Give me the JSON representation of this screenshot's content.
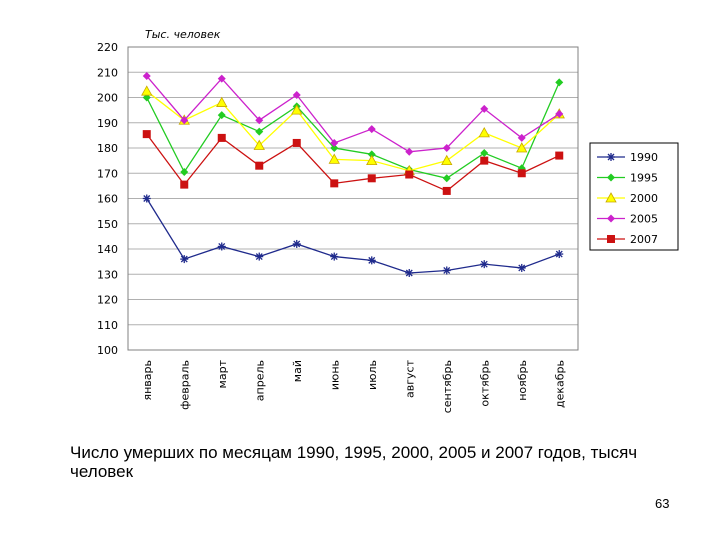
{
  "slide": {
    "caption": "Число умерших по месяцам 1990, 1995, 2000, 2005 и 2007 годов, тысяч человек",
    "page_number": "63"
  },
  "chart_data": {
    "type": "line",
    "ylabel": "Тыс. человек",
    "ylim": [
      100,
      220
    ],
    "yticks": [
      100,
      110,
      120,
      130,
      140,
      150,
      160,
      170,
      180,
      190,
      200,
      210,
      220
    ],
    "grid": true,
    "legend_position": "right",
    "categories": [
      "январь",
      "февраль",
      "март",
      "апрель",
      "май",
      "июнь",
      "июль",
      "август",
      "сентябрь",
      "октябрь",
      "ноябрь",
      "декабрь"
    ],
    "series": [
      {
        "name": "1990",
        "color": "#1f2a8c",
        "marker": "star",
        "values": [
          160,
          136,
          141,
          137,
          142,
          137,
          135.5,
          130.5,
          131.5,
          134,
          132.5,
          138
        ]
      },
      {
        "name": "1995",
        "color": "#22cc22",
        "marker": "diamond",
        "values": [
          200,
          170.5,
          193,
          186.5,
          196.5,
          180,
          177.5,
          171.5,
          168,
          178,
          172,
          206
        ]
      },
      {
        "name": "2000",
        "color": "#ffff00",
        "marker": "triangle",
        "values": [
          202.5,
          191,
          198,
          181,
          195,
          175.5,
          175,
          171,
          175,
          186,
          180,
          193.5
        ]
      },
      {
        "name": "2005",
        "color": "#cc22cc",
        "marker": "diamond",
        "values": [
          208.5,
          191,
          207.5,
          191,
          201,
          182,
          187.5,
          178.5,
          180,
          195.5,
          184,
          193.5
        ]
      },
      {
        "name": "2007",
        "color": "#cc1111",
        "marker": "square",
        "values": [
          185.5,
          165.5,
          184,
          173,
          182,
          166,
          168,
          169.5,
          163,
          175,
          170,
          177
        ]
      }
    ]
  }
}
